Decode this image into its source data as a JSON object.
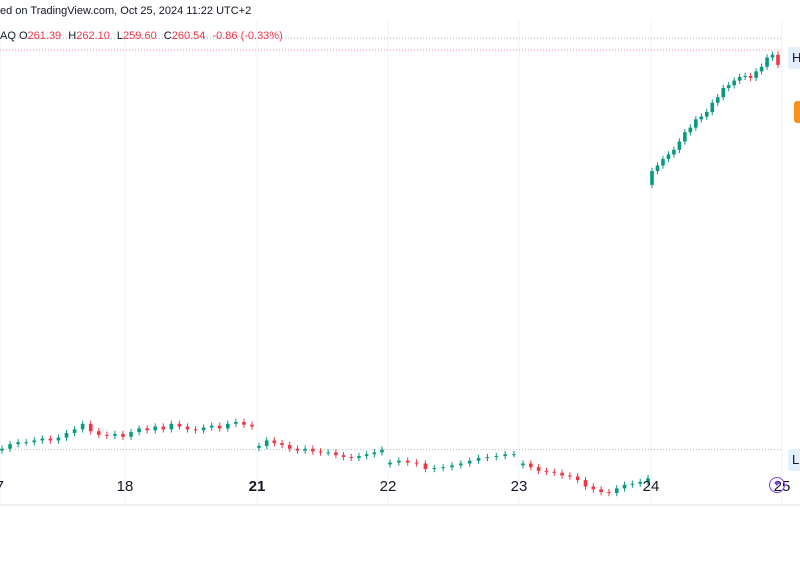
{
  "header": {
    "published_text": "ed on TradingView.com, Oct 25, 2024 11:22 UTC+2",
    "ticker_fragment": "AQ",
    "open_label": "O",
    "open_value": "261.39",
    "high_label": "H",
    "high_value": "262.10",
    "low_label": "L",
    "low_value": "259.60",
    "close_label": "C",
    "close_value": "260.54",
    "change": "-0.86 (-0.33%)"
  },
  "side_labels": {
    "high_marker": "H",
    "low_marker": "L"
  },
  "colors": {
    "up": "#089981",
    "down": "#f23645",
    "grid": "#f0f3fa",
    "dotted": "#b2b5be",
    "accent_orange": "#f7931a",
    "accent_purple": "#7b3ff2"
  },
  "chart_data": {
    "type": "candlestick",
    "x_ticks": [
      {
        "label": "7",
        "bold": false
      },
      {
        "label": "18",
        "bold": false
      },
      {
        "label": "21",
        "bold": true
      },
      {
        "label": "22",
        "bold": false
      },
      {
        "label": "23",
        "bold": false
      },
      {
        "label": "24",
        "bold": false
      },
      {
        "label": "25",
        "bold": false
      }
    ],
    "ohlc": {
      "open": 261.39,
      "high": 262.1,
      "low": 259.6,
      "close": 260.54
    },
    "day_high": 262.1,
    "day_low": 218.8,
    "series": [
      {
        "segment": "Oct 17-18",
        "closes": [
          218.9,
          219.4,
          219.6,
          219.6,
          219.8,
          220.0,
          219.8,
          220.1,
          220.6,
          221.0,
          221.6,
          220.8,
          220.4,
          220.3,
          220.5,
          220.2,
          220.7,
          221.1,
          220.9,
          221.3,
          221.0,
          221.6,
          221.3,
          221.0,
          220.9,
          221.2,
          221.4,
          221.1,
          221.6,
          221.8,
          221.5,
          221.3
        ]
      },
      {
        "segment": "Oct 21",
        "closes": [
          219.2,
          219.8,
          219.5,
          219.3,
          218.9,
          218.7,
          218.9,
          218.6,
          218.5,
          218.5,
          218.2,
          218.0,
          217.9,
          218.1,
          218.3,
          218.5,
          218.8
        ]
      },
      {
        "segment": "Oct 22",
        "closes": [
          217.4,
          217.6,
          217.4,
          217.3,
          216.7,
          216.8,
          216.9,
          217.1,
          217.3,
          217.6,
          217.9,
          218.0,
          218.1,
          218.3,
          218.3
        ]
      },
      {
        "segment": "Oct 23",
        "closes": [
          217.3,
          216.9,
          216.5,
          216.4,
          216.3,
          216.0,
          215.9,
          215.5,
          214.8,
          214.5,
          214.2,
          214.1,
          214.6,
          215.0,
          215.1,
          215.3,
          215.7
        ]
      },
      {
        "segment": "Oct 24",
        "closes": [
          249.0,
          249.6,
          250.3,
          250.8,
          251.3,
          252.2,
          253.2,
          253.7,
          254.6,
          254.9,
          255.4,
          256.4,
          257.0,
          258.0,
          258.3,
          258.8,
          259.2,
          259.3,
          259.1,
          259.8,
          260.3,
          261.3,
          261.6,
          260.5
        ]
      }
    ]
  }
}
